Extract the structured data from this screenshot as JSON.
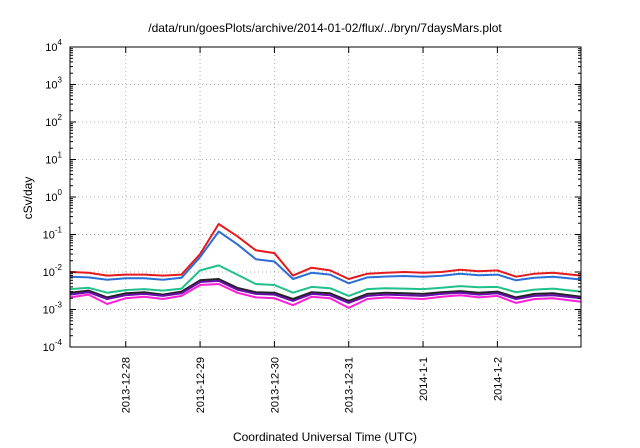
{
  "chart_data": {
    "type": "line",
    "title": "/data/run/goesPlots/archive/2014-01-02/flux/../bryn/7daysMars.plot",
    "xlabel": "Coordinated Universal Time (UTC)",
    "ylabel": "cSv/day",
    "y_scale": "log",
    "ylim": [
      0.0001,
      10000
    ],
    "y_ticks": [
      {
        "value": 0.0001,
        "base": "10",
        "exp": "-4"
      },
      {
        "value": 0.001,
        "base": "10",
        "exp": "-3"
      },
      {
        "value": 0.01,
        "base": "10",
        "exp": "-2"
      },
      {
        "value": 0.1,
        "base": "10",
        "exp": "-1"
      },
      {
        "value": 1,
        "base": "10",
        "exp": "0"
      },
      {
        "value": 10,
        "base": "10",
        "exp": "1"
      },
      {
        "value": 100,
        "base": "10",
        "exp": "2"
      },
      {
        "value": 1000,
        "base": "10",
        "exp": "3"
      },
      {
        "value": 10000,
        "base": "10",
        "exp": "4"
      }
    ],
    "xlim": [
      "2013-12-27 06:00",
      "2014-01-03 03:00"
    ],
    "x_ticks": [
      "2013-12-28",
      "2013-12-29",
      "2013-12-30",
      "2013-12-31",
      "2014-1-1",
      "2014-1-2"
    ],
    "x_tick_dates": [
      "2013-12-28",
      "2013-12-29",
      "2013-12-30",
      "2013-12-31",
      "2014-01-01",
      "2014-01-02"
    ],
    "grid": true,
    "x_sample_times": [
      "2013-12-27 06:00",
      "2013-12-27 12:00",
      "2013-12-27 18:00",
      "2013-12-28 00:00",
      "2013-12-28 06:00",
      "2013-12-28 12:00",
      "2013-12-28 18:00",
      "2013-12-29 00:00",
      "2013-12-29 06:00",
      "2013-12-29 12:00",
      "2013-12-29 18:00",
      "2013-12-30 00:00",
      "2013-12-30 06:00",
      "2013-12-30 12:00",
      "2013-12-30 18:00",
      "2013-12-31 00:00",
      "2013-12-31 06:00",
      "2013-12-31 12:00",
      "2013-12-31 18:00",
      "2014-01-01 00:00",
      "2014-01-01 06:00",
      "2014-01-01 12:00",
      "2014-01-01 18:00",
      "2014-01-02 00:00",
      "2014-01-02 06:00",
      "2014-01-02 12:00",
      "2014-01-02 18:00",
      "2014-01-03 03:00"
    ],
    "series": [
      {
        "color": "#e41a1c",
        "values": [
          0.01,
          0.0095,
          0.008,
          0.0085,
          0.0085,
          0.008,
          0.0085,
          0.03,
          0.19,
          0.09,
          0.038,
          0.032,
          0.008,
          0.013,
          0.011,
          0.0065,
          0.009,
          0.0095,
          0.01,
          0.0095,
          0.01,
          0.0115,
          0.0105,
          0.011,
          0.0075,
          0.009,
          0.0095,
          0.008
        ]
      },
      {
        "color": "#2b6fd6",
        "values": [
          0.0075,
          0.0072,
          0.0062,
          0.0068,
          0.0068,
          0.0062,
          0.007,
          0.025,
          0.12,
          0.055,
          0.022,
          0.019,
          0.0065,
          0.0095,
          0.0085,
          0.005,
          0.0072,
          0.0076,
          0.0078,
          0.0075,
          0.0079,
          0.009,
          0.0082,
          0.0085,
          0.006,
          0.007,
          0.0075,
          0.0063
        ]
      },
      {
        "color": "#1fc08a",
        "values": [
          0.0035,
          0.0038,
          0.0028,
          0.0033,
          0.0035,
          0.0032,
          0.0036,
          0.011,
          0.015,
          0.0085,
          0.0048,
          0.0045,
          0.0028,
          0.004,
          0.0037,
          0.0023,
          0.0035,
          0.0037,
          0.0036,
          0.0035,
          0.0038,
          0.0042,
          0.0039,
          0.004,
          0.0029,
          0.0034,
          0.0036,
          0.003
        ]
      },
      {
        "color": "#222222",
        "values": [
          0.0028,
          0.0032,
          0.0021,
          0.0027,
          0.0029,
          0.0025,
          0.003,
          0.006,
          0.0065,
          0.0038,
          0.0029,
          0.0028,
          0.0019,
          0.0029,
          0.0027,
          0.0017,
          0.0026,
          0.0028,
          0.0027,
          0.0026,
          0.0029,
          0.0031,
          0.0028,
          0.003,
          0.0021,
          0.0026,
          0.0027,
          0.0022
        ]
      },
      {
        "color": "#6a0dad",
        "values": [
          0.0025,
          0.0029,
          0.0019,
          0.0024,
          0.0026,
          0.0023,
          0.0027,
          0.0054,
          0.0058,
          0.0034,
          0.0026,
          0.0025,
          0.0017,
          0.0026,
          0.0024,
          0.0015,
          0.0023,
          0.0025,
          0.0024,
          0.0023,
          0.0026,
          0.0028,
          0.0025,
          0.0027,
          0.0019,
          0.0023,
          0.0024,
          0.002
        ]
      },
      {
        "color": "#ff1fd6",
        "values": [
          0.0021,
          0.0025,
          0.0014,
          0.002,
          0.0022,
          0.0019,
          0.0023,
          0.0045,
          0.0048,
          0.0028,
          0.0021,
          0.002,
          0.0013,
          0.0022,
          0.002,
          0.0011,
          0.0019,
          0.0021,
          0.002,
          0.0019,
          0.0022,
          0.0024,
          0.0021,
          0.0023,
          0.0015,
          0.0019,
          0.002,
          0.0016
        ]
      }
    ]
  }
}
